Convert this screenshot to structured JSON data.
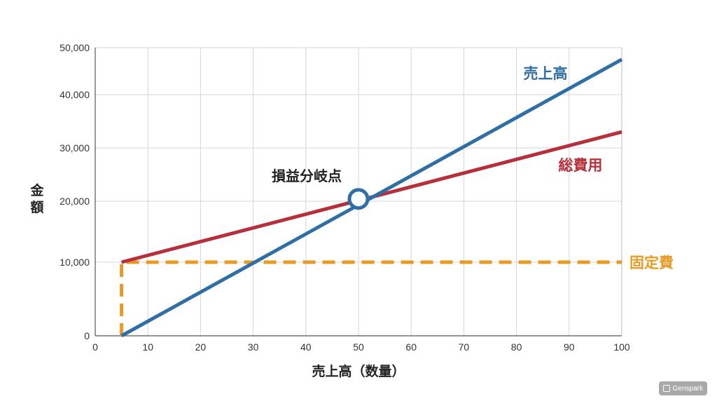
{
  "chart_data": {
    "type": "line",
    "title": "",
    "xlabel": "売上高（数量）",
    "ylabel": "金額",
    "xlim": [
      0,
      100
    ],
    "ylim": [
      0,
      50000
    ],
    "x_ticks": [
      0,
      10,
      20,
      30,
      40,
      50,
      60,
      70,
      80,
      90,
      100
    ],
    "x_tick_labels": [
      "0",
      "10",
      "20",
      "30",
      "40",
      "50",
      "60",
      "70",
      "80",
      "90",
      "100"
    ],
    "y_ticks": [
      0,
      10000,
      20000,
      30000,
      40000,
      50000
    ],
    "y_tick_labels": [
      "0",
      "10,000",
      "20,000",
      "30,000",
      "40,000",
      "50,000"
    ],
    "grid": true,
    "series": [
      {
        "name": "売上高",
        "color": "#2f6fa6",
        "style": "solid",
        "x": [
          5,
          100
        ],
        "y": [
          0,
          47500
        ]
      },
      {
        "name": "総費用",
        "color": "#b5303a",
        "style": "solid",
        "x": [
          5,
          100
        ],
        "y": [
          10000,
          33000
        ]
      },
      {
        "name": "固定費",
        "color": "#e89b24",
        "style": "dashed",
        "x": [
          5,
          5,
          100
        ],
        "y": [
          0,
          10000,
          10000
        ]
      }
    ],
    "annotations": [
      {
        "text": "損益分岐点",
        "x": 50,
        "y": 20500
      }
    ]
  },
  "watermark": {
    "text": "Genspark"
  }
}
